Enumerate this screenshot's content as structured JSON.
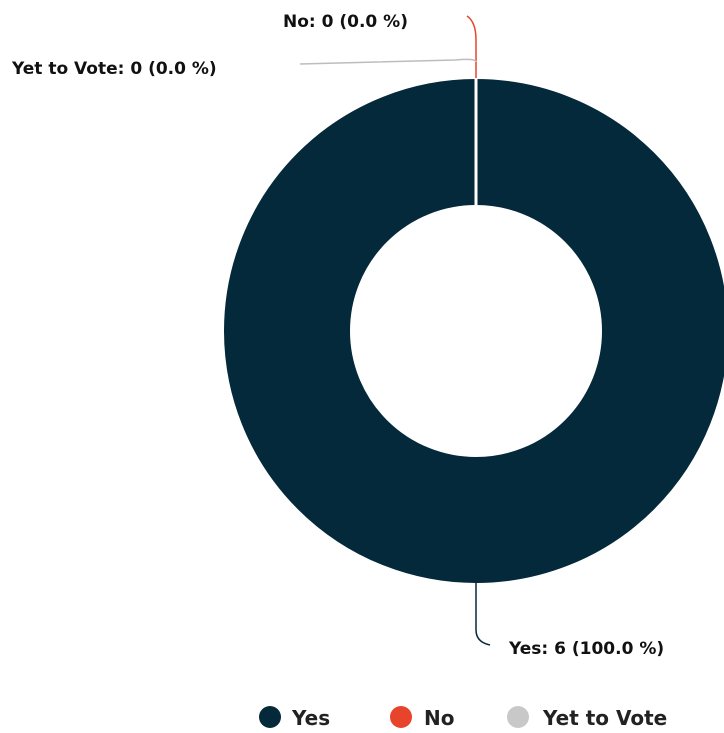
{
  "chart_data": {
    "type": "pie",
    "donut": true,
    "slices": [
      {
        "name": "Yes",
        "value": 6,
        "percent": 100.0,
        "color": "#04293a",
        "label": "Yes: 6 (100.0 %)"
      },
      {
        "name": "No",
        "value": 0,
        "percent": 0.0,
        "color": "#e8432b",
        "label": "No: 0 (0.0 %)"
      },
      {
        "name": "Yet to Vote",
        "value": 0,
        "percent": 0.0,
        "color": "#c8c8c8",
        "label": "Yet to Vote: 0 (0.0 %)"
      }
    ],
    "legend": {
      "position": "bottom-right",
      "items": [
        "Yes",
        "No",
        "Yet to Vote"
      ]
    }
  }
}
